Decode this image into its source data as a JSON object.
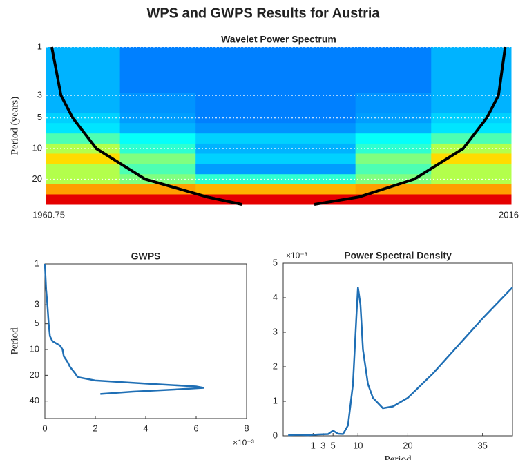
{
  "title": "WPS and GWPS Results for Austria",
  "chart_data": [
    {
      "type": "heatmap",
      "title": "Wavelet Power Spectrum",
      "y_label": "Period (years)",
      "colormap": "jet",
      "x": [
        1965,
        1974,
        1983,
        1993,
        2002,
        2011
      ],
      "y": [
        1.2,
        1.6,
        2,
        2.5,
        3.2,
        4,
        5,
        6.3,
        8,
        10,
        12.6,
        16,
        20,
        25,
        32
      ],
      "z": [
        [
          0.3,
          0.25,
          0.25,
          0.25,
          0.25,
          0.3
        ],
        [
          0.3,
          0.25,
          0.25,
          0.25,
          0.25,
          0.3
        ],
        [
          0.3,
          0.25,
          0.25,
          0.25,
          0.25,
          0.3
        ],
        [
          0.3,
          0.25,
          0.25,
          0.25,
          0.25,
          0.3
        ],
        [
          0.3,
          0.27,
          0.25,
          0.25,
          0.27,
          0.3
        ],
        [
          0.3,
          0.27,
          0.25,
          0.25,
          0.27,
          0.3
        ],
        [
          0.33,
          0.28,
          0.25,
          0.25,
          0.28,
          0.33
        ],
        [
          0.35,
          0.3,
          0.27,
          0.27,
          0.3,
          0.35
        ],
        [
          0.45,
          0.38,
          0.33,
          0.33,
          0.38,
          0.45
        ],
        [
          0.55,
          0.42,
          0.3,
          0.3,
          0.42,
          0.55
        ],
        [
          0.66,
          0.5,
          0.33,
          0.33,
          0.5,
          0.66
        ],
        [
          0.55,
          0.45,
          0.28,
          0.28,
          0.45,
          0.55
        ],
        [
          0.55,
          0.5,
          0.42,
          0.42,
          0.5,
          0.55
        ],
        [
          0.72,
          0.72,
          0.7,
          0.7,
          0.72,
          0.72
        ],
        [
          0.9,
          0.9,
          0.9,
          0.9,
          0.9,
          0.9
        ]
      ],
      "series": [
        {
          "color": "#000000",
          "x": [
            1961.4,
            1962.5,
            1963.9,
            1966.7,
            1972.5,
            1979.9,
            1984
          ],
          "values": [
            1,
            3,
            5,
            10,
            20,
            30,
            35.5
          ]
        },
        {
          "color": "#000000",
          "x": [
            2015.3,
            2014.5,
            2013.1,
            2010.3,
            2004.5,
            1997.9,
            1992.6
          ],
          "values": [
            1,
            3,
            5,
            10,
            20,
            30,
            35.5
          ]
        }
      ],
      "xlim": [
        1960.75,
        2016
      ],
      "xticks": [
        1960.75,
        2016
      ],
      "ylim": [
        1,
        35.5
      ],
      "yticks": [
        1,
        3,
        5,
        10,
        20
      ],
      "yscale": "log",
      "y_direction": "reverse",
      "grid": true
    },
    {
      "type": "line",
      "title": "GWPS",
      "y_label": "Period",
      "x_exponent_label": "×10⁻³",
      "color": "#1f6fb5",
      "x": [
        0,
        0.05,
        0.1,
        0.15,
        0.2,
        0.3,
        0.6,
        0.7,
        0.75,
        0.9,
        1.0,
        1.2,
        1.3,
        2,
        4,
        6,
        6.3,
        5,
        3.5,
        2.2
      ],
      "y": [
        1,
        2,
        3,
        5,
        7,
        8,
        9,
        10,
        12,
        14,
        16,
        19,
        21,
        23,
        25,
        27,
        28,
        29.5,
        31,
        33
      ],
      "xlim": [
        0,
        8
      ],
      "xticks": [
        0,
        2,
        4,
        6,
        8
      ],
      "ylim": [
        1,
        64
      ],
      "yticks": [
        1,
        3,
        5,
        10,
        20,
        40
      ],
      "yscale": "log",
      "y_direction": "reverse"
    },
    {
      "type": "line",
      "title": "Power Spectral Density",
      "x_label": "Period",
      "y_exponent_label": "×10⁻³",
      "color": "#1f6fb5",
      "x": [
        -4,
        -2,
        0,
        2,
        4,
        5,
        6,
        7,
        8,
        9,
        9.7,
        10,
        10.5,
        11,
        12,
        13,
        15,
        17,
        20,
        25,
        30,
        35,
        41
      ],
      "y": [
        0.02,
        0.03,
        0.02,
        0.04,
        0.05,
        0.15,
        0.06,
        0.05,
        0.3,
        1.5,
        3.5,
        4.3,
        3.8,
        2.5,
        1.5,
        1.1,
        0.8,
        0.85,
        1.1,
        1.8,
        2.6,
        3.4,
        4.3
      ],
      "xlim": [
        -5,
        41
      ],
      "xticks": [
        1,
        3,
        5,
        10,
        20,
        35
      ],
      "ylim": [
        0,
        5
      ],
      "yticks": [
        0,
        1,
        2,
        3,
        4,
        5
      ]
    }
  ]
}
